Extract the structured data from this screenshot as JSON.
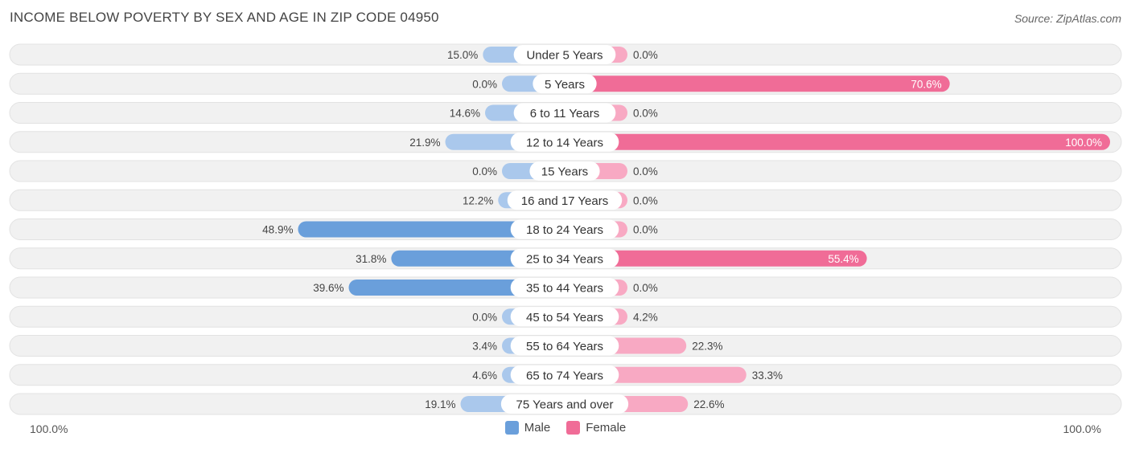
{
  "chart_data": {
    "type": "bar",
    "orientation": "horizontal-diverging",
    "title": "INCOME BELOW POVERTY BY SEX AND AGE IN ZIP CODE 04950",
    "source": "Source: ZipAtlas.com",
    "categories": [
      "Under 5 Years",
      "5 Years",
      "6 to 11 Years",
      "12 to 14 Years",
      "15 Years",
      "16 and 17 Years",
      "18 to 24 Years",
      "25 to 34 Years",
      "35 to 44 Years",
      "45 to 54 Years",
      "55 to 64 Years",
      "65 to 74 Years",
      "75 Years and over"
    ],
    "series": [
      {
        "name": "Male",
        "values": [
          15.0,
          0.0,
          14.6,
          21.9,
          0.0,
          12.2,
          48.9,
          31.8,
          39.6,
          0.0,
          3.4,
          4.6,
          19.1
        ],
        "labels": [
          "15.0%",
          "0.0%",
          "14.6%",
          "21.9%",
          "0.0%",
          "12.2%",
          "48.9%",
          "31.8%",
          "39.6%",
          "0.0%",
          "3.4%",
          "4.6%",
          "19.1%"
        ]
      },
      {
        "name": "Female",
        "values": [
          0.0,
          70.6,
          0.0,
          100.0,
          0.0,
          0.0,
          0.0,
          55.4,
          0.0,
          4.2,
          22.3,
          33.3,
          22.6
        ],
        "labels": [
          "0.0%",
          "70.6%",
          "0.0%",
          "100.0%",
          "0.0%",
          "0.0%",
          "0.0%",
          "55.4%",
          "0.0%",
          "4.2%",
          "22.3%",
          "33.3%",
          "22.6%"
        ]
      }
    ],
    "xlim": [
      -100,
      100
    ],
    "axis_left_label": "100.0%",
    "axis_right_label": "100.0%",
    "legend_position": "bottom-center",
    "colors": {
      "male_strong": "#6a9fdb",
      "male_light": "#aac8ec",
      "female_strong": "#f06c97",
      "female_light": "#f8a9c3",
      "track": "#f1f1f1",
      "track_border": "#e2e2e2"
    }
  }
}
